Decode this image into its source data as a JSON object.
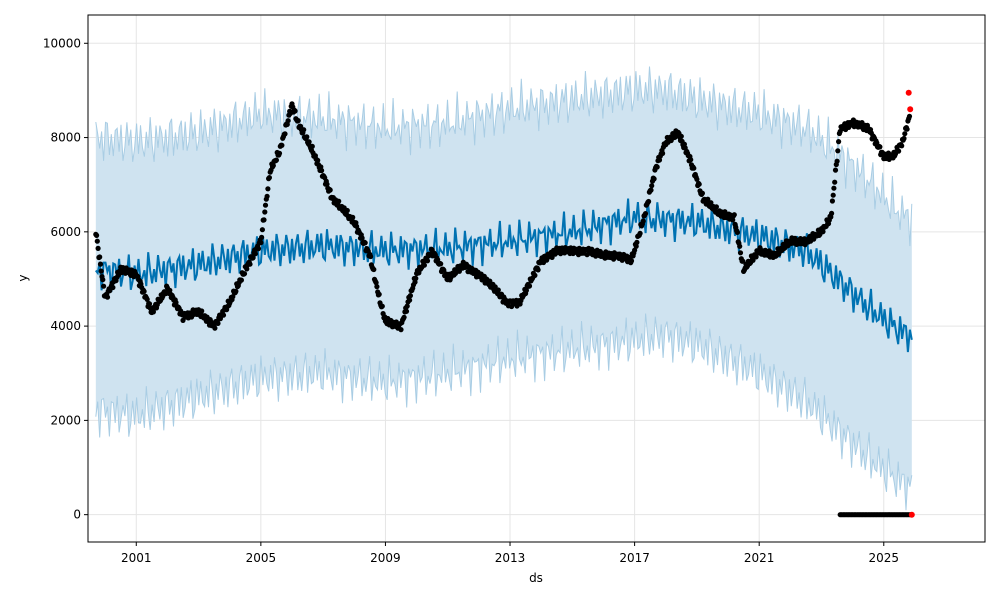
{
  "chart_data": {
    "type": "line",
    "title": "",
    "xlabel": "ds",
    "ylabel": "y",
    "xlim": [
      1999.45,
      2028.25
    ],
    "ylim": [
      -580,
      10600
    ],
    "grid": true,
    "x_ticks": [
      2001,
      2005,
      2009,
      2013,
      2017,
      2021,
      2025
    ],
    "x_tick_labels": [
      "2001",
      "2005",
      "2009",
      "2013",
      "2017",
      "2021",
      "2025"
    ],
    "y_ticks": [
      0,
      2000,
      4000,
      6000,
      8000,
      10000
    ],
    "y_tick_labels": [
      "0",
      "2000",
      "4000",
      "6000",
      "8000",
      "10000"
    ],
    "forecast_band": {
      "x_start": 1999.7,
      "x_end": 2025.9,
      "upper": {
        "x": [
          1999.7,
          2001,
          2003,
          2005,
          2007,
          2009,
          2011,
          2013,
          2015,
          2017,
          2018,
          2019,
          2021,
          2022.5,
          2023.5,
          2024.5,
          2025.5,
          2025.9
        ],
        "y": [
          8000,
          7900,
          8100,
          8500,
          8400,
          8200,
          8300,
          8600,
          8800,
          9000,
          9000,
          8800,
          8500,
          8200,
          7700,
          7100,
          6400,
          6300
        ]
      },
      "lower": {
        "x": [
          1999.7,
          2001,
          2003,
          2005,
          2007,
          2009,
          2011,
          2013,
          2015,
          2017,
          2018,
          2019,
          2021,
          2022.5,
          2023.5,
          2024.5,
          2025.5,
          2025.9
        ],
        "y": [
          2200,
          2100,
          2500,
          2900,
          3000,
          2800,
          3000,
          3300,
          3500,
          3700,
          3800,
          3600,
          3000,
          2400,
          1800,
          1200,
          700,
          600
        ]
      }
    },
    "series": [
      {
        "kind": "forecast_line",
        "x": [
          1999.7,
          2001,
          2003,
          2005,
          2007,
          2009,
          2011,
          2013,
          2015,
          2017,
          2019,
          2021,
          2022.5,
          2023.5,
          2024.5,
          2025.5,
          2025.9
        ],
        "y": [
          5200,
          5100,
          5300,
          5600,
          5700,
          5600,
          5650,
          5800,
          6000,
          6300,
          6200,
          5900,
          5600,
          5000,
          4400,
          3900,
          3800
        ]
      },
      {
        "kind": "observed_points",
        "x": [
          1999.7,
          2000.0,
          2000.5,
          2001.0,
          2001.5,
          2002.0,
          2002.5,
          2003.0,
          2003.5,
          2004.0,
          2004.5,
          2005.0,
          2005.3,
          2005.6,
          2006.0,
          2006.2,
          2006.6,
          2007.0,
          2007.3,
          2007.6,
          2008.0,
          2008.5,
          2008.8,
          2009.0,
          2009.5,
          2010.0,
          2010.5,
          2011.0,
          2011.5,
          2012.0,
          2012.5,
          2012.9,
          2013.3,
          2013.7,
          2014.0,
          2014.5,
          2015.0,
          2015.5,
          2016.0,
          2016.5,
          2016.9,
          2017.3,
          2017.7,
          2018.0,
          2018.4,
          2018.8,
          2019.2,
          2019.7,
          2020.2,
          2020.5,
          2021.0,
          2021.5,
          2022.0,
          2022.5,
          2023.0,
          2023.3,
          2023.6,
          2024.0,
          2024.5,
          2025.0,
          2025.3,
          2025.6,
          2025.85
        ],
        "y": [
          6000,
          4600,
          5200,
          5100,
          4300,
          4800,
          4200,
          4300,
          4000,
          4500,
          5200,
          5800,
          7300,
          7700,
          8700,
          8300,
          7800,
          7200,
          6700,
          6500,
          6200,
          5500,
          4600,
          4100,
          4000,
          5100,
          5600,
          5000,
          5300,
          5100,
          4800,
          4500,
          4500,
          5000,
          5400,
          5600,
          5600,
          5600,
          5500,
          5500,
          5400,
          6300,
          7400,
          7900,
          8100,
          7500,
          6700,
          6400,
          6300,
          5200,
          5600,
          5500,
          5800,
          5800,
          6000,
          6300,
          8200,
          8300,
          8200,
          7600,
          7600,
          7900,
          8500
        ]
      },
      {
        "kind": "observed_zero_points",
        "x": [
          2023.6,
          2023.9,
          2024.2,
          2024.5,
          2024.8,
          2025.1,
          2025.4,
          2025.7,
          2025.9
        ],
        "y": [
          0,
          0,
          0,
          0,
          0,
          0,
          0,
          0,
          0
        ]
      },
      {
        "kind": "highlighted_points",
        "x": [
          2025.8,
          2025.85,
          2025.9
        ],
        "y": [
          8950,
          8600,
          0
        ]
      }
    ],
    "colors": {
      "band": "#cfe3f0",
      "band_edge": "#a9cde4",
      "forecast_line": "#0072b2",
      "observed": "#000000",
      "highlight": "#ff0000",
      "grid": "#e5e5e5",
      "frame": "#000000"
    }
  }
}
